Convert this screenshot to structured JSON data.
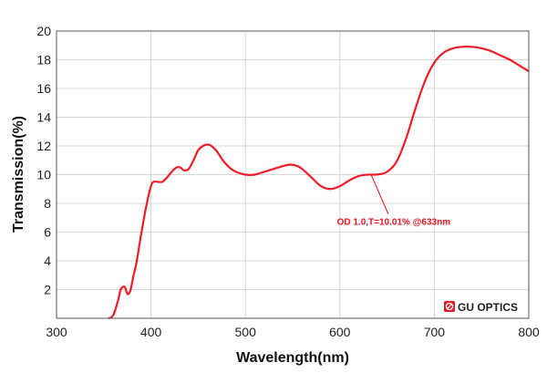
{
  "chart_data": {
    "type": "line",
    "xlabel": "Wavelength(nm)",
    "ylabel": "Transmission(%)",
    "xlim": [
      300,
      800
    ],
    "ylim": [
      0,
      20
    ],
    "xticks": [
      "300",
      "400",
      "500",
      "600",
      "700",
      "800"
    ],
    "yticks": [
      "2",
      "4",
      "6",
      "8",
      "10",
      "12",
      "14",
      "16",
      "18",
      "20"
    ],
    "grid": true,
    "line_color": "#ee1c25",
    "series": [
      {
        "x": [
          355,
          360,
          365,
          368,
          372,
          375,
          378,
          381,
          385,
          390,
          395,
          400,
          403,
          407,
          412,
          417,
          422,
          427,
          431,
          435,
          440,
          445,
          450,
          455,
          460,
          464,
          470,
          475,
          480,
          485,
          490,
          500,
          510,
          520,
          530,
          540,
          547,
          555,
          560,
          570,
          580,
          590,
          600,
          610,
          620,
          630,
          640,
          650,
          660,
          670,
          680,
          690,
          700,
          710,
          720,
          730,
          740,
          750,
          760,
          770,
          780,
          790,
          800
        ],
        "y": [
          0.0,
          0.2,
          1.2,
          2.0,
          2.2,
          1.7,
          1.9,
          2.8,
          4.0,
          6.0,
          7.8,
          9.2,
          9.5,
          9.5,
          9.5,
          9.8,
          10.2,
          10.5,
          10.5,
          10.3,
          10.4,
          11.0,
          11.7,
          12.0,
          12.1,
          12.0,
          11.6,
          11.1,
          10.7,
          10.4,
          10.2,
          10.0,
          10.0,
          10.2,
          10.4,
          10.6,
          10.7,
          10.6,
          10.4,
          9.8,
          9.2,
          9.0,
          9.2,
          9.6,
          9.9,
          10.0,
          10.01,
          10.2,
          10.9,
          12.5,
          14.6,
          16.5,
          17.8,
          18.5,
          18.8,
          18.9,
          18.9,
          18.8,
          18.6,
          18.3,
          18.0,
          17.6,
          17.2
        ]
      }
    ],
    "annotation": {
      "text": "OD 1.0,T=10.01% @633nm",
      "color": "#e8141c",
      "point_x": 633,
      "point_y": 10.01,
      "text_x": 657,
      "text_y": 6.5
    }
  },
  "logo": {
    "text": "GU OPTICS",
    "icon": "gu-optics-logo-icon",
    "color": "#e8141c"
  }
}
